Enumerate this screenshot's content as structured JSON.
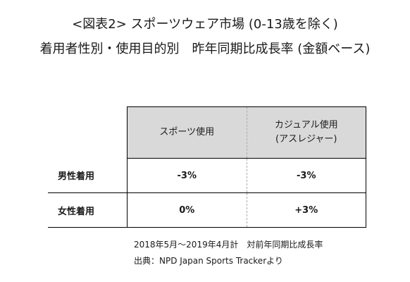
{
  "chart_data": {
    "type": "table",
    "title": "<図表2> スポーツウェア市場 (0-13歳を除く)",
    "subtitle": "着用者性別・使用目的別　昨年同期比成長率 (金額ベース)",
    "columns": [
      [
        "スポーツ使用"
      ],
      [
        "カジュアル使用",
        "(アスレジャー)"
      ]
    ],
    "rows": [
      {
        "label": "男性着用",
        "values": [
          "-3%",
          "-3%"
        ]
      },
      {
        "label": "女性着用",
        "values": [
          "0%",
          "+3%"
        ]
      }
    ],
    "notes": [
      "2018年5月～2019年4月計　対前年同期比成長率",
      "出典：NPD Japan Sports Trackerより"
    ]
  },
  "colors": {
    "header_fill": "#d9d9d9",
    "grid_line": "#000000",
    "inner_divider": "#aaaaaa"
  }
}
